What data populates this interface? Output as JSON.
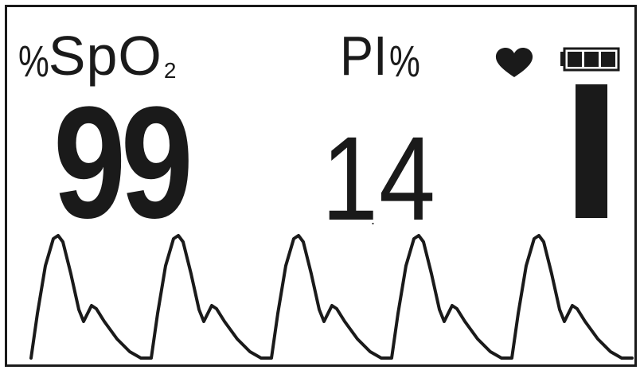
{
  "spo2": {
    "unit_symbol": "%",
    "label": "SpO",
    "subscript": "2",
    "value": "99"
  },
  "pi": {
    "label": "PI",
    "unit_symbol": "%",
    "value_int": "1",
    "value_sep": ".",
    "value_frac": "4"
  },
  "status": {
    "heart_icon": "heart-icon",
    "battery_icon": "battery-icon",
    "battery_bars_filled": 3,
    "battery_bars_total": 3
  },
  "pulse_strength": {
    "level_fraction": 1.0
  },
  "waveform": {
    "type": "plethysmograph",
    "cycles": 5,
    "color": "#1a1a1a"
  },
  "colors": {
    "foreground": "#1a1a1a",
    "background": "#ffffff"
  }
}
